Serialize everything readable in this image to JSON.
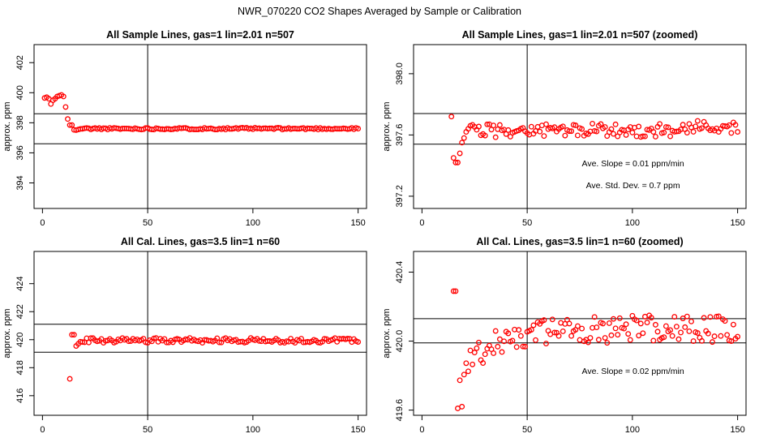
{
  "title": "NWR_070220  CO2 Shapes Averaged by Sample or Calibration",
  "colors": {
    "points": "#ff0000",
    "axes": "#000000",
    "background": "#ffffff"
  },
  "chart_data": [
    {
      "type": "scatter",
      "title": "All Sample Lines, gas=1 lin=2.01 n=507",
      "xlabel": "",
      "ylabel": "approx. ppm",
      "xlim": [
        -4,
        154
      ],
      "ylim": [
        392.3,
        403.2
      ],
      "xticks": [
        0,
        50,
        100,
        150
      ],
      "yticks": [
        394,
        396,
        398,
        400,
        402
      ],
      "vline": 50,
      "hlines": [
        396.6,
        398.6
      ],
      "annotations": [],
      "series": [
        {
          "x": [],
          "y": []
        }
      ]
    },
    {
      "type": "scatter",
      "title": "All Sample Lines, gas=1 lin=2.01 n=507 (zoomed)",
      "xlabel": "",
      "ylabel": "approx. ppm",
      "xlim": [
        -4,
        154
      ],
      "ylim": [
        397.12,
        398.19
      ],
      "xticks": [
        0,
        50,
        100,
        150
      ],
      "yticks": [
        397.2,
        397.6,
        398.0
      ],
      "ytickLabels": [
        "397.2",
        "397.6",
        "398.0"
      ],
      "vline": 50,
      "hlines": [
        397.54,
        397.74
      ],
      "annotations": [
        "Ave. Slope =  0.01  ppm/min",
        "Ave. Std. Dev. =  0.7  ppm"
      ],
      "series": [
        {
          "x": [],
          "y": []
        }
      ]
    },
    {
      "type": "scatter",
      "title": "All Cal. Lines, gas=3.5 lin=1 n=60",
      "xlabel": "",
      "ylabel": "approx. ppm",
      "xlim": [
        -4,
        154
      ],
      "ylim": [
        414.6,
        426.3
      ],
      "xticks": [
        0,
        50,
        100,
        150
      ],
      "yticks": [
        416,
        418,
        420,
        422,
        424
      ],
      "vline": 50,
      "hlines": [
        419.1,
        421.1
      ],
      "annotations": [],
      "series": [
        {
          "x": [],
          "y": []
        }
      ]
    },
    {
      "type": "scatter",
      "title": "All Cal. Lines, gas=3.5 lin=1 n=60 (zoomed)",
      "xlabel": "",
      "ylabel": "approx. ppm",
      "xlim": [
        -4,
        154
      ],
      "ylim": [
        419.57,
        420.52
      ],
      "xticks": [
        0,
        50,
        100,
        150
      ],
      "yticks": [
        419.6,
        420.0,
        420.4
      ],
      "ytickLabels": [
        "419.6",
        "420.0",
        "420.4"
      ],
      "vline": 50,
      "hlines": [
        419.99,
        420.13
      ],
      "annotations": [
        "Ave. Slope =  0.02  ppm/min"
      ],
      "series": [
        {
          "x": [],
          "y": []
        }
      ]
    }
  ]
}
